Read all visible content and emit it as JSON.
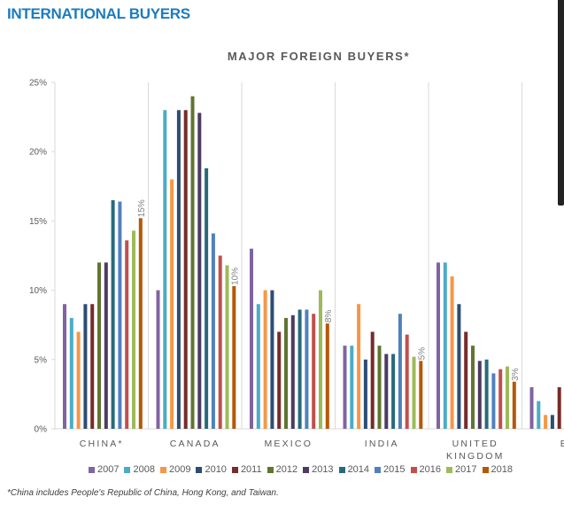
{
  "header": {
    "section_title": "INTERNATIONAL BUYERS"
  },
  "chart_data": {
    "type": "bar",
    "title": "MAJOR FOREIGN BUYERS*",
    "xlabel": "",
    "ylabel": "",
    "ylim": [
      0,
      25
    ],
    "yticks": [
      "0%",
      "5%",
      "10%",
      "15%",
      "20%",
      "25%"
    ],
    "ytick_values": [
      0,
      5,
      10,
      15,
      20,
      25
    ],
    "grid": "vertical category separators",
    "legend_position": "bottom",
    "categories": [
      "CHINA*",
      "CANADA",
      "MEXICO",
      "INDIA",
      "UNITED KINGDOM",
      "BR"
    ],
    "series": [
      {
        "name": "2007",
        "color": "#8064a2",
        "values": [
          9,
          10,
          13,
          6,
          12,
          3
        ]
      },
      {
        "name": "2008",
        "color": "#4bacc6",
        "values": [
          8,
          23,
          9,
          6,
          12,
          2
        ]
      },
      {
        "name": "2009",
        "color": "#f79646",
        "values": [
          7,
          18,
          10,
          9,
          11,
          1
        ]
      },
      {
        "name": "2010",
        "color": "#2c4d75",
        "values": [
          9,
          23,
          10,
          5,
          9,
          1
        ]
      },
      {
        "name": "2011",
        "color": "#772c2a",
        "values": [
          9,
          23,
          7,
          7,
          7,
          3
        ]
      },
      {
        "name": "2012",
        "color": "#5f7530",
        "values": [
          12,
          24,
          8,
          6,
          6,
          null
        ]
      },
      {
        "name": "2013",
        "color": "#4d3b62",
        "values": [
          12,
          22.8,
          8.2,
          5.4,
          4.9,
          null
        ]
      },
      {
        "name": "2014",
        "color": "#276a7c",
        "values": [
          16.5,
          18.8,
          8.6,
          5.4,
          5,
          null
        ]
      },
      {
        "name": "2015",
        "color": "#4f81bd",
        "values": [
          16.4,
          14.1,
          8.6,
          8.3,
          4,
          null
        ]
      },
      {
        "name": "2016",
        "color": "#c0504d",
        "values": [
          13.6,
          12.5,
          8.3,
          6.8,
          4.3,
          null
        ]
      },
      {
        "name": "2017",
        "color": "#9bbb59",
        "values": [
          14.3,
          11.8,
          10,
          5.2,
          4.5,
          null
        ]
      },
      {
        "name": "2018",
        "color": "#b65708",
        "values": [
          15.2,
          10.3,
          7.6,
          4.9,
          3.4,
          null
        ]
      }
    ],
    "data_labels": [
      {
        "category": "CHINA*",
        "series": "2018",
        "text": "15%"
      },
      {
        "category": "CANADA",
        "series": "2018",
        "text": "10%"
      },
      {
        "category": "MEXICO",
        "series": "2018",
        "text": "8%"
      },
      {
        "category": "INDIA",
        "series": "2018",
        "text": "5%"
      },
      {
        "category": "UNITED KINGDOM",
        "series": "2018",
        "text": "3%"
      }
    ]
  },
  "footnote": "*China includes People's Republic of China, Hong Kong, and Taiwan."
}
